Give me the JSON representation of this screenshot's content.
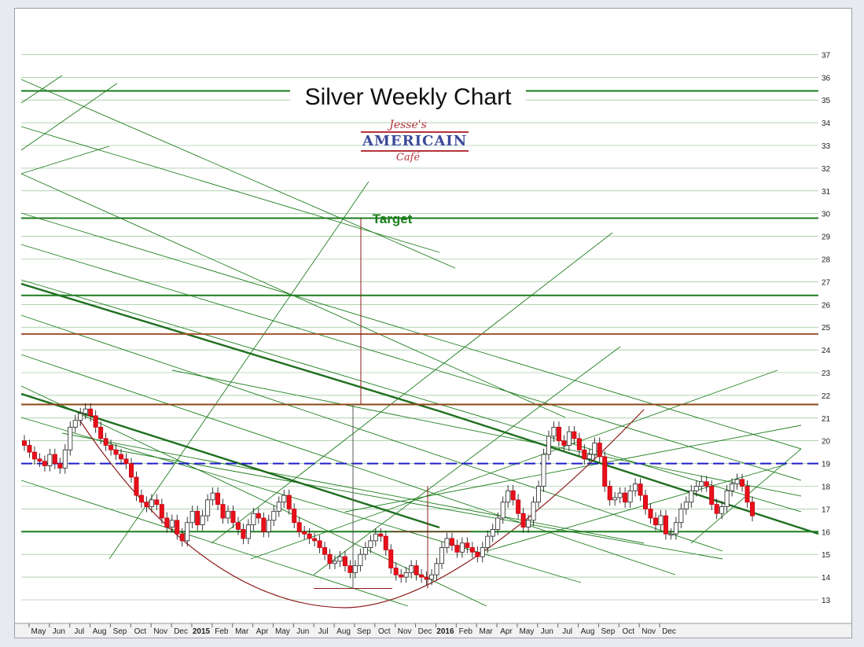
{
  "chart_data": {
    "type": "candlestick",
    "title": "Silver Weekly Chart",
    "annotation_target": "Target",
    "logo_text": [
      "Jesse's",
      "AMERICAIN",
      "Café"
    ],
    "y_ticks": [
      13,
      14,
      15,
      16,
      17,
      18,
      19,
      20,
      21,
      22,
      23,
      24,
      25,
      26,
      27,
      28,
      29,
      30,
      31,
      32,
      33,
      34,
      35,
      36,
      37
    ],
    "ylim": [
      12.4,
      37.2
    ],
    "x_ticks": [
      "May",
      "Jun",
      "Jul",
      "Aug",
      "Sep",
      "Oct",
      "Nov",
      "Dec",
      "2015",
      "Feb",
      "Mar",
      "Apr",
      "May",
      "Jun",
      "Jul",
      "Aug",
      "Sep",
      "Oct",
      "Nov",
      "Dec",
      "2016",
      "Feb",
      "Mar",
      "Apr",
      "May",
      "Jun",
      "Jul",
      "Aug",
      "Sep",
      "Oct",
      "Nov",
      "Dec"
    ],
    "year_ticks": [
      "2015",
      "2016"
    ],
    "horizontal_levels": [
      {
        "value": 35.4,
        "color": "#1e7d1e"
      },
      {
        "value": 29.8,
        "color": "#1e7d1e"
      },
      {
        "value": 26.4,
        "color": "#1e7d1e"
      },
      {
        "value": 24.7,
        "color": "#a0522d"
      },
      {
        "value": 21.6,
        "color": "#8b4513"
      },
      {
        "value": 19.0,
        "color": "#1f1fcc",
        "dashed": true
      },
      {
        "value": 16.0,
        "color": "#1e7d1e"
      }
    ],
    "target_value": 29.8,
    "closes": [
      19.8,
      19.5,
      19.2,
      19.1,
      18.9,
      19.4,
      19.0,
      18.8,
      19.6,
      20.6,
      20.9,
      21.2,
      21.4,
      21.1,
      20.6,
      20.1,
      19.8,
      19.6,
      19.4,
      19.2,
      19.0,
      18.4,
      17.6,
      17.3,
      17.1,
      17.4,
      17.2,
      16.6,
      16.2,
      16.5,
      15.9,
      15.6,
      16.4,
      16.9,
      16.3,
      16.7,
      17.4,
      17.7,
      17.2,
      16.6,
      16.9,
      16.4,
      16.1,
      15.7,
      16.3,
      16.8,
      16.6,
      16.0,
      16.5,
      16.9,
      17.3,
      17.6,
      17.0,
      16.4,
      16.0,
      15.9,
      15.7,
      15.6,
      15.3,
      15.0,
      14.6,
      14.7,
      14.9,
      14.5,
      14.2,
      14.5,
      15.0,
      15.3,
      15.6,
      15.9,
      15.8,
      15.2,
      14.4,
      14.1,
      14.0,
      14.2,
      14.5,
      14.1,
      14.0,
      13.9,
      14.1,
      14.6,
      15.3,
      15.7,
      15.4,
      15.1,
      15.5,
      15.3,
      15.1,
      14.9,
      15.3,
      15.8,
      16.1,
      16.6,
      17.3,
      17.8,
      17.4,
      16.8,
      16.2,
      16.5,
      17.3,
      18.0,
      19.4,
      20.2,
      20.6,
      20.0,
      19.8,
      20.4,
      20.1,
      19.6,
      19.2,
      19.4,
      19.9,
      19.3,
      18.0,
      17.4,
      17.5,
      17.7,
      17.3,
      17.8,
      18.1,
      17.6,
      17.0,
      16.6,
      16.3,
      16.7,
      15.9,
      15.9,
      16.4,
      17.0,
      17.3,
      17.8,
      18.0,
      18.2,
      18.0,
      17.2,
      16.8,
      17.1,
      17.8,
      18.1,
      18.3,
      18.0,
      17.3,
      16.7
    ],
    "grid": false,
    "legend": "none"
  }
}
